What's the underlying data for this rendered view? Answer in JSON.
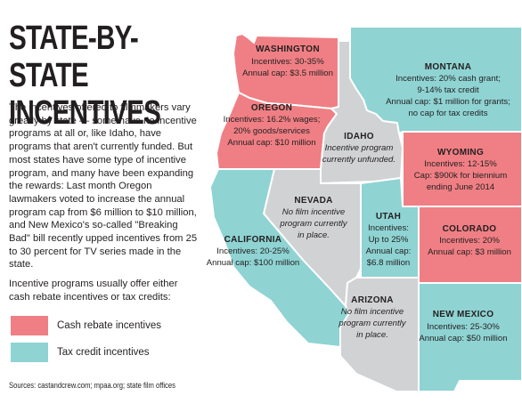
{
  "title_line1": "STATE-BY-STATE",
  "title_line2": "INCENTIVES",
  "intro": "The incentives offered to filmmakers vary greatly by state — some have no incentive programs at all or, like Idaho, have programs that aren't currently funded. But most states have some type of incentive program, and many have been expanding the rewards: Last month Oregon lawmakers voted to increase the annual program cap from $6 million to $10 million, and New Mexico's so-called \"Breaking Bad\" bill recently upped incentives from 25 to 30 percent for TV series made in the state.",
  "note": "Incentive programs usually offer either cash rebate incentives or tax credits:",
  "legend": {
    "cash": "Cash rebate incentives",
    "tax": "Tax credit incentives"
  },
  "colors": {
    "cash": "#ef7f84",
    "tax": "#8fd3d3",
    "none": "#d1d2d4",
    "border": "#ffffff"
  },
  "sources": "Sources: castandcrew.com; mpaa.org; state film offices",
  "states": {
    "washington": {
      "name": "WASHINGTON",
      "lines": [
        "Incentives: 30-35%",
        "Annual cap: $3.5 million"
      ],
      "type": "cash"
    },
    "oregon": {
      "name": "OREGON",
      "lines": [
        "Incentives: 16.2% wages;",
        "20% goods/services",
        "Annual cap: $10 million"
      ],
      "type": "cash"
    },
    "montana": {
      "name": "MONTANA",
      "lines": [
        "Incentives: 20% cash grant;",
        "9-14% tax credit",
        "Annual cap: $1 million for grants;",
        "no cap for tax credits"
      ],
      "type": "tax"
    },
    "idaho": {
      "name": "IDAHO",
      "lines": [
        "Incentive program",
        "currently unfunded."
      ],
      "type": "none"
    },
    "wyoming": {
      "name": "WYOMING",
      "lines": [
        "Incentives: 12-15%",
        "Cap: $900k for biennium",
        "ending June 2014"
      ],
      "type": "cash"
    },
    "nevada": {
      "name": "NEVADA",
      "lines": [
        "No film incentive",
        "program currently",
        "in place."
      ],
      "type": "none"
    },
    "utah": {
      "name": "UTAH",
      "lines": [
        "Incentives:",
        "Up to 25%",
        "Annual cap:",
        "$6.8 million"
      ],
      "type": "tax"
    },
    "colorado": {
      "name": "COLORADO",
      "lines": [
        "Incentives: 20%",
        "Annual cap: $3 million"
      ],
      "type": "cash"
    },
    "california": {
      "name": "CALIFORNIA",
      "lines": [
        "Incentives: 20-25%",
        "Annual cap: $100 million"
      ],
      "type": "tax"
    },
    "arizona": {
      "name": "ARIZONA",
      "lines": [
        "No film incentive",
        "program currently",
        "in place."
      ],
      "type": "none"
    },
    "new_mexico": {
      "name": "NEW MEXICO",
      "lines": [
        "Incentives: 25-30%",
        "Annual cap: $50 million"
      ],
      "type": "tax"
    }
  }
}
